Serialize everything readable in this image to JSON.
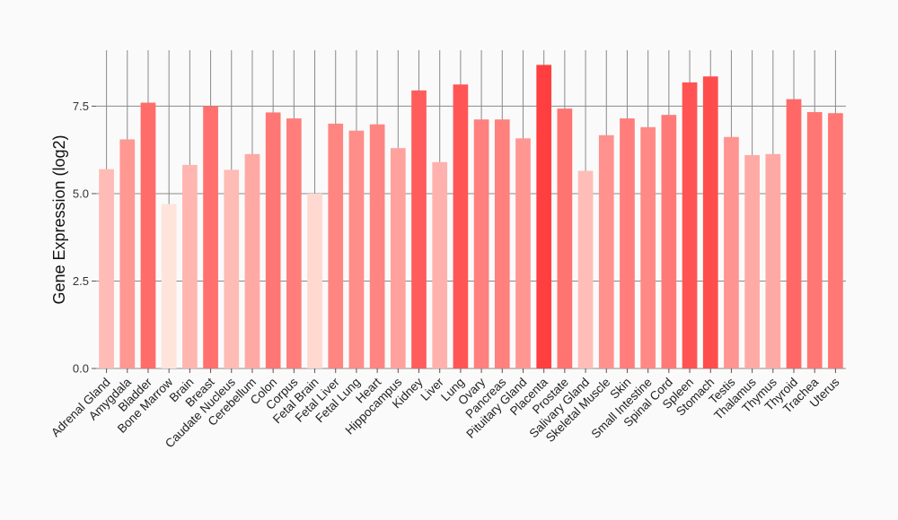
{
  "chart_data": {
    "type": "bar",
    "title": "",
    "xlabel": "",
    "ylabel": "Gene Expression (log2)",
    "ylim": [
      0,
      9.1
    ],
    "yticks": [
      0,
      2.5,
      5,
      7.5
    ],
    "ytick_labels": [
      "0.0",
      "2.5",
      "5.0",
      "7.5"
    ],
    "grid": true,
    "color_scale": {
      "low": "#ffe4dc",
      "high": "#ff3f3f"
    },
    "categories": [
      "Adrenal Gland",
      "Amygdala",
      "Bladder",
      "Bone Marrow",
      "Brain",
      "Breast",
      "Caudate Nucleus",
      "Cerebellum",
      "Colon",
      "Corpus",
      "Fetal Brain",
      "Fetal Liver",
      "Fetal Lung",
      "Heart",
      "Hippocampus",
      "Kidney",
      "Liver",
      "Lung",
      "Ovary",
      "Pancreas",
      "Pituitary Gland",
      "Placenta",
      "Prostate",
      "Salivary Gland",
      "Skeletal Muscle",
      "Skin",
      "Small Intestine",
      "Spinal Cord",
      "Spleen",
      "Stomach",
      "Testis",
      "Thalamus",
      "Thymus",
      "Thyroid",
      "Trachea",
      "Uterus"
    ],
    "values": [
      5.7,
      6.55,
      7.6,
      4.7,
      5.82,
      7.5,
      5.68,
      6.13,
      7.32,
      7.15,
      5.0,
      7.0,
      6.8,
      6.98,
      6.3,
      7.95,
      5.9,
      8.12,
      7.12,
      7.12,
      6.58,
      8.68,
      7.43,
      5.65,
      6.67,
      7.15,
      6.9,
      7.25,
      8.18,
      8.35,
      6.62,
      6.1,
      6.13,
      7.7,
      7.33,
      7.3
    ]
  }
}
